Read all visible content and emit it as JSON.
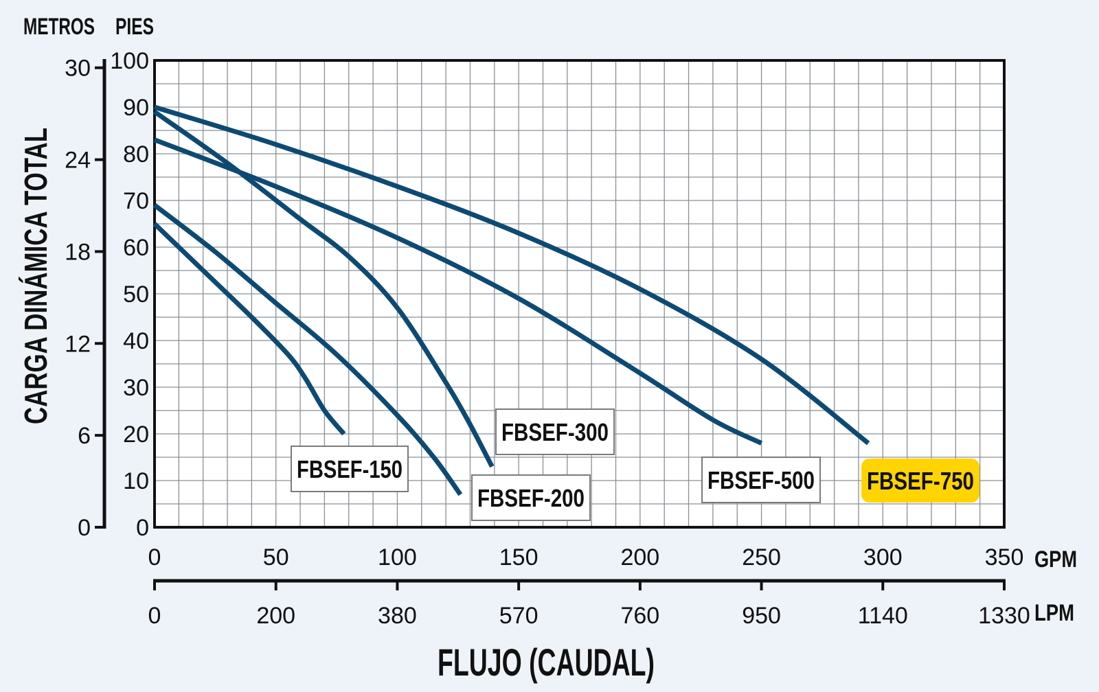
{
  "chart_data": {
    "type": "line",
    "title": "",
    "xlabel": "FLUJO (CAUDAL)",
    "ylabel": "CARGA DINÁMICA TOTAL",
    "x_unit_primary": "GPM",
    "x_unit_secondary": "LPM",
    "y_unit_primary": "PIES",
    "y_unit_secondary": "METROS",
    "xlim": [
      0,
      350
    ],
    "ylim": [
      0,
      100
    ],
    "x_ticks_gpm": [
      "0",
      "50",
      "100",
      "150",
      "200",
      "250",
      "300",
      "350"
    ],
    "x_ticks_lpm": [
      "0",
      "200",
      "380",
      "570",
      "760",
      "950",
      "1140",
      "1330"
    ],
    "y_ticks_pies": [
      "0",
      "10",
      "20",
      "30",
      "40",
      "50",
      "60",
      "70",
      "80",
      "90",
      "100"
    ],
    "y_ticks_metros": [
      "0",
      "6",
      "12",
      "18",
      "24",
      "30"
    ],
    "grid": true,
    "line_color": "#0d4a73",
    "highlight_color": "#ffd400",
    "series": [
      {
        "name": "FBSEF-150",
        "x": [
          0,
          20,
          40,
          55,
          62,
          70,
          78
        ],
        "y": [
          65,
          55,
          45,
          37,
          32,
          25,
          20
        ]
      },
      {
        "name": "FBSEF-200",
        "x": [
          0,
          25,
          50,
          75,
          100,
          115,
          126
        ],
        "y": [
          69,
          59,
          48,
          37,
          24,
          15,
          7
        ]
      },
      {
        "name": "FBSEF-300",
        "x": [
          0,
          30,
          60,
          80,
          100,
          120,
          130,
          139
        ],
        "y": [
          89,
          78,
          66,
          58,
          47,
          31,
          22,
          13
        ]
      },
      {
        "name": "FBSEF-500",
        "x": [
          0,
          50,
          100,
          150,
          200,
          230,
          250
        ],
        "y": [
          83,
          73,
          62,
          49,
          33,
          23,
          18
        ]
      },
      {
        "name": "FBSEF-750",
        "x": [
          0,
          50,
          100,
          150,
          200,
          250,
          294
        ],
        "y": [
          90,
          82,
          73,
          63,
          51,
          36,
          18
        ]
      }
    ]
  }
}
